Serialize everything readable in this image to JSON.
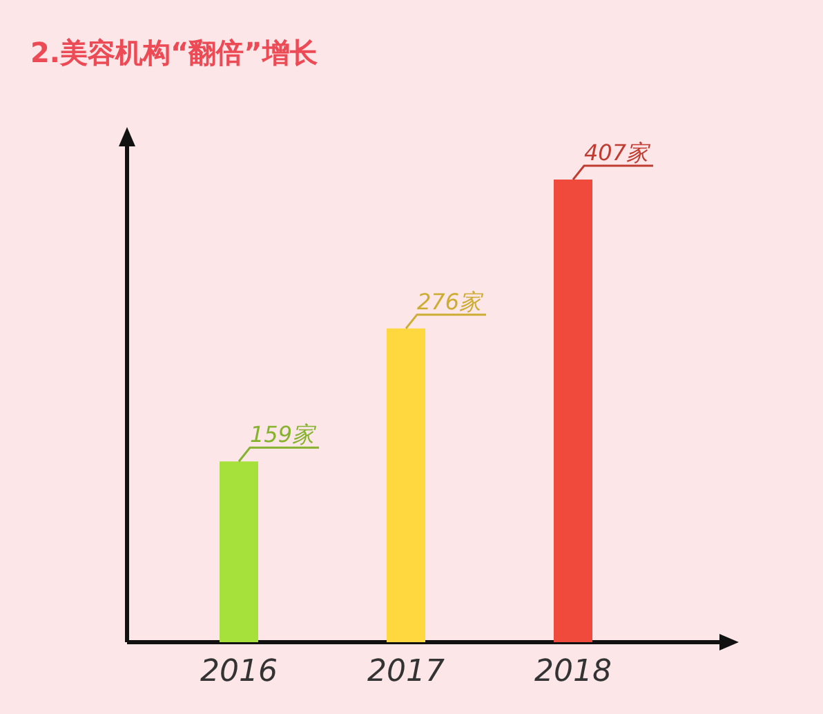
{
  "chart_data": {
    "type": "bar",
    "title": "2.美容机构“翻倍”增长",
    "categories": [
      "2016",
      "2017",
      "2018"
    ],
    "values": [
      159,
      276,
      407
    ],
    "colors": [
      "#a6e03a",
      "#ffd83f",
      "#f04a3c"
    ],
    "value_labels": [
      "159家",
      "276家",
      "407家"
    ]
  }
}
